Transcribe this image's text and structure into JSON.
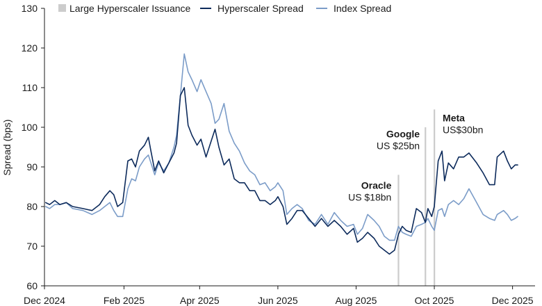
{
  "chart_data": {
    "type": "line",
    "title": "",
    "ylabel": "Spread (bps)",
    "xlabel": "",
    "ylim": [
      60,
      130
    ],
    "yticks": [
      60,
      70,
      80,
      90,
      100,
      110,
      120,
      130
    ],
    "x_tick_labels": [
      "Dec 2024",
      "Feb 2025",
      "Apr 2025",
      "Jun 2025",
      "Aug 2025",
      "Oct 2025",
      "Dec 2025"
    ],
    "x_tick_dates": [
      "2024-12-01",
      "2025-02-01",
      "2025-04-01",
      "2025-06-01",
      "2025-08-01",
      "2025-10-01",
      "2025-12-01"
    ],
    "x_range": [
      "2024-12-01",
      "2025-12-05"
    ],
    "grid": false,
    "legend_position": "top",
    "legend": [
      "Large Hyperscaler Issuance",
      "Hyperscaler Spread",
      "Index Spread"
    ],
    "colors": {
      "issuance": "#cccccc",
      "hyperscaler": "#0c2a5b",
      "index": "#7b9cc8"
    },
    "issuance_dates": [
      "2025-09-03",
      "2025-09-24",
      "2025-10-01"
    ],
    "annotations": [
      {
        "name": "Oracle",
        "amount": "US $18bn",
        "date": "2025-09-03"
      },
      {
        "name": "Google",
        "amount": "US $25bn",
        "date": "2025-09-24"
      },
      {
        "name": "Meta",
        "amount": "US$30bn",
        "date": "2025-10-01"
      }
    ],
    "series": [
      {
        "name": "Hyperscaler Spread",
        "points": [
          [
            "2024-12-02",
            81
          ],
          [
            "2024-12-05",
            80.5
          ],
          [
            "2024-12-09",
            81.5
          ],
          [
            "2024-12-13",
            80.5
          ],
          [
            "2024-12-18",
            81
          ],
          [
            "2024-12-23",
            80
          ],
          [
            "2024-12-31",
            79.5
          ],
          [
            "2025-01-07",
            79
          ],
          [
            "2025-01-13",
            80.5
          ],
          [
            "2025-01-17",
            82.5
          ],
          [
            "2025-01-21",
            84
          ],
          [
            "2025-01-24",
            83
          ],
          [
            "2025-01-27",
            80
          ],
          [
            "2025-01-31",
            81
          ],
          [
            "2025-02-04",
            91.5
          ],
          [
            "2025-02-07",
            92
          ],
          [
            "2025-02-10",
            90
          ],
          [
            "2025-02-13",
            94
          ],
          [
            "2025-02-17",
            95.5
          ],
          [
            "2025-02-20",
            97.5
          ],
          [
            "2025-02-22",
            94
          ],
          [
            "2025-02-25",
            89
          ],
          [
            "2025-02-28",
            91.5
          ],
          [
            "2025-03-04",
            88.5
          ],
          [
            "2025-03-08",
            91
          ],
          [
            "2025-03-12",
            93.5
          ],
          [
            "2025-03-14",
            96
          ],
          [
            "2025-03-17",
            108
          ],
          [
            "2025-03-20",
            110
          ],
          [
            "2025-03-23",
            100.5
          ],
          [
            "2025-03-26",
            98
          ],
          [
            "2025-03-30",
            95.5
          ],
          [
            "2025-04-02",
            97
          ],
          [
            "2025-04-06",
            92.5
          ],
          [
            "2025-04-10",
            96.5
          ],
          [
            "2025-04-13",
            99.5
          ],
          [
            "2025-04-16",
            95
          ],
          [
            "2025-04-20",
            90.5
          ],
          [
            "2025-04-24",
            92
          ],
          [
            "2025-04-28",
            87
          ],
          [
            "2025-05-02",
            86
          ],
          [
            "2025-05-06",
            86
          ],
          [
            "2025-05-10",
            84
          ],
          [
            "2025-05-14",
            84
          ],
          [
            "2025-05-18",
            81.5
          ],
          [
            "2025-05-22",
            81.5
          ],
          [
            "2025-05-26",
            80.5
          ],
          [
            "2025-05-30",
            81.5
          ],
          [
            "2025-06-01",
            82.5
          ],
          [
            "2025-06-05",
            80
          ],
          [
            "2025-06-08",
            75.5
          ],
          [
            "2025-06-12",
            77
          ],
          [
            "2025-06-16",
            79
          ],
          [
            "2025-06-20",
            79
          ],
          [
            "2025-06-25",
            77
          ],
          [
            "2025-06-30",
            75
          ],
          [
            "2025-07-05",
            77
          ],
          [
            "2025-07-10",
            75
          ],
          [
            "2025-07-15",
            76.5
          ],
          [
            "2025-07-20",
            75
          ],
          [
            "2025-07-25",
            73
          ],
          [
            "2025-07-30",
            74.5
          ],
          [
            "2025-08-02",
            71
          ],
          [
            "2025-08-06",
            72
          ],
          [
            "2025-08-10",
            73.5
          ],
          [
            "2025-08-15",
            72
          ],
          [
            "2025-08-19",
            70
          ],
          [
            "2025-08-23",
            69
          ],
          [
            "2025-08-27",
            68
          ],
          [
            "2025-08-31",
            69
          ],
          [
            "2025-09-03",
            73
          ],
          [
            "2025-09-06",
            75
          ],
          [
            "2025-09-09",
            74
          ],
          [
            "2025-09-13",
            73.5
          ],
          [
            "2025-09-17",
            79.5
          ],
          [
            "2025-09-21",
            78.5
          ],
          [
            "2025-09-24",
            76
          ],
          [
            "2025-09-26",
            79.5
          ],
          [
            "2025-09-29",
            77.5
          ],
          [
            "2025-10-01",
            80
          ],
          [
            "2025-10-04",
            91.5
          ],
          [
            "2025-10-07",
            94
          ],
          [
            "2025-10-09",
            86.5
          ],
          [
            "2025-10-12",
            91
          ],
          [
            "2025-10-16",
            89.5
          ],
          [
            "2025-10-20",
            92.5
          ],
          [
            "2025-10-24",
            92.5
          ],
          [
            "2025-10-28",
            93.5
          ],
          [
            "2025-11-03",
            91
          ],
          [
            "2025-11-08",
            88.5
          ],
          [
            "2025-11-13",
            85.5
          ],
          [
            "2025-11-17",
            85.5
          ],
          [
            "2025-11-19",
            92.5
          ],
          [
            "2025-11-24",
            94
          ],
          [
            "2025-11-27",
            91.5
          ],
          [
            "2025-11-30",
            89.5
          ],
          [
            "2025-12-03",
            90.5
          ],
          [
            "2025-12-05",
            90.5
          ]
        ]
      },
      {
        "name": "Index Spread",
        "points": [
          [
            "2024-12-02",
            80
          ],
          [
            "2024-12-05",
            79.5
          ],
          [
            "2024-12-09",
            80.5
          ],
          [
            "2024-12-13",
            80.5
          ],
          [
            "2024-12-18",
            81
          ],
          [
            "2024-12-23",
            79.5
          ],
          [
            "2024-12-31",
            79
          ],
          [
            "2025-01-07",
            78
          ],
          [
            "2025-01-13",
            79
          ],
          [
            "2025-01-17",
            80
          ],
          [
            "2025-01-21",
            81
          ],
          [
            "2025-01-24",
            79
          ],
          [
            "2025-01-27",
            77.5
          ],
          [
            "2025-01-31",
            77.5
          ],
          [
            "2025-02-04",
            84.5
          ],
          [
            "2025-02-07",
            87
          ],
          [
            "2025-02-10",
            86.5
          ],
          [
            "2025-02-13",
            90
          ],
          [
            "2025-02-17",
            92
          ],
          [
            "2025-02-20",
            93
          ],
          [
            "2025-02-22",
            91
          ],
          [
            "2025-02-25",
            88
          ],
          [
            "2025-02-28",
            91
          ],
          [
            "2025-03-04",
            89
          ],
          [
            "2025-03-08",
            91
          ],
          [
            "2025-03-12",
            95
          ],
          [
            "2025-03-14",
            98
          ],
          [
            "2025-03-17",
            108
          ],
          [
            "2025-03-20",
            118.5
          ],
          [
            "2025-03-23",
            114
          ],
          [
            "2025-03-26",
            112
          ],
          [
            "2025-03-30",
            109
          ],
          [
            "2025-04-02",
            112
          ],
          [
            "2025-04-06",
            109
          ],
          [
            "2025-04-10",
            106
          ],
          [
            "2025-04-13",
            101
          ],
          [
            "2025-04-16",
            102
          ],
          [
            "2025-04-20",
            106
          ],
          [
            "2025-04-24",
            99
          ],
          [
            "2025-04-28",
            96
          ],
          [
            "2025-05-02",
            94
          ],
          [
            "2025-05-06",
            91
          ],
          [
            "2025-05-10",
            89
          ],
          [
            "2025-05-14",
            88
          ],
          [
            "2025-05-18",
            85.5
          ],
          [
            "2025-05-22",
            86
          ],
          [
            "2025-05-26",
            84
          ],
          [
            "2025-05-30",
            85
          ],
          [
            "2025-06-01",
            86
          ],
          [
            "2025-06-05",
            84
          ],
          [
            "2025-06-08",
            78
          ],
          [
            "2025-06-12",
            79.5
          ],
          [
            "2025-06-16",
            80.5
          ],
          [
            "2025-06-20",
            79.5
          ],
          [
            "2025-06-25",
            76.5
          ],
          [
            "2025-06-30",
            75.5
          ],
          [
            "2025-07-05",
            78
          ],
          [
            "2025-07-10",
            75.5
          ],
          [
            "2025-07-15",
            78.5
          ],
          [
            "2025-07-20",
            76.5
          ],
          [
            "2025-07-25",
            75
          ],
          [
            "2025-07-30",
            75.5
          ],
          [
            "2025-08-02",
            73
          ],
          [
            "2025-08-06",
            74.5
          ],
          [
            "2025-08-10",
            78
          ],
          [
            "2025-08-15",
            76.5
          ],
          [
            "2025-08-19",
            75
          ],
          [
            "2025-08-23",
            72.5
          ],
          [
            "2025-08-27",
            71.5
          ],
          [
            "2025-08-31",
            71.5
          ],
          [
            "2025-09-03",
            75
          ],
          [
            "2025-09-06",
            73.5
          ],
          [
            "2025-09-09",
            73
          ],
          [
            "2025-09-13",
            72.5
          ],
          [
            "2025-09-17",
            75
          ],
          [
            "2025-09-21",
            75.5
          ],
          [
            "2025-09-24",
            76
          ],
          [
            "2025-09-26",
            77
          ],
          [
            "2025-09-29",
            75
          ],
          [
            "2025-10-01",
            74
          ],
          [
            "2025-10-04",
            79
          ],
          [
            "2025-10-07",
            79.5
          ],
          [
            "2025-10-09",
            77.5
          ],
          [
            "2025-10-12",
            80.5
          ],
          [
            "2025-10-16",
            81.5
          ],
          [
            "2025-10-20",
            80.5
          ],
          [
            "2025-10-24",
            82
          ],
          [
            "2025-10-28",
            84.5
          ],
          [
            "2025-11-03",
            81
          ],
          [
            "2025-11-08",
            78
          ],
          [
            "2025-11-13",
            77
          ],
          [
            "2025-11-17",
            76.5
          ],
          [
            "2025-11-19",
            78
          ],
          [
            "2025-11-24",
            79
          ],
          [
            "2025-11-27",
            78
          ],
          [
            "2025-11-30",
            76.5
          ],
          [
            "2025-12-03",
            77
          ],
          [
            "2025-12-05",
            77.5
          ]
        ]
      }
    ]
  }
}
